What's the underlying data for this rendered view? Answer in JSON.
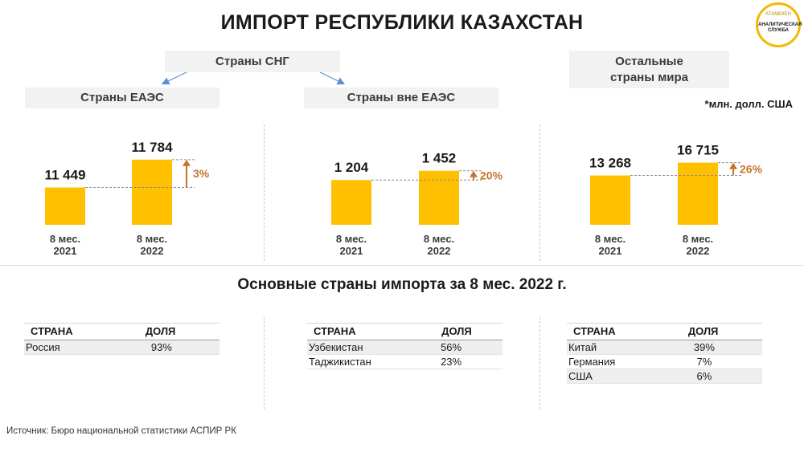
{
  "header": {
    "title": "ИМПОРТ РЕСПУБЛИКИ КАЗАХСТАН"
  },
  "logo": {
    "top_text": "АТАМЕКЕН",
    "bottom_text": "АНАЛИТИЧЕСКАЯ СЛУЖБА"
  },
  "groups": {
    "cis": "Страны СНГ",
    "eaeu": "Страны ЕАЭС",
    "non_eaeu": "Страны вне ЕАЭС",
    "other_line1": "Остальные",
    "other_line2": "страны мира"
  },
  "unit_note": "*млн. долл. США",
  "colors": {
    "bar": "#ffc000",
    "arrow": "#c5762a",
    "pct": "#c5762a"
  },
  "chart_data": [
    {
      "type": "bar",
      "title": "Страны ЕАЭС",
      "categories": [
        [
          "8 мес.",
          "2021"
        ],
        [
          "8 мес.",
          "2022"
        ]
      ],
      "values": [
        11449,
        11784
      ],
      "value_labels": [
        "11 449",
        "11 784"
      ],
      "change": "3%",
      "ylim": [
        11000,
        11850
      ]
    },
    {
      "type": "bar",
      "title": "Страны вне ЕАЭС",
      "categories": [
        [
          "8 мес.",
          "2021"
        ],
        [
          "8 мес.",
          "2022"
        ]
      ],
      "values": [
        1204,
        1452
      ],
      "value_labels": [
        "1 204",
        "1 452"
      ],
      "change": "20%",
      "ylim": [
        0,
        1900
      ]
    },
    {
      "type": "bar",
      "title": "Остальные страны мира",
      "categories": [
        [
          "8 мес.",
          "2021"
        ],
        [
          "8 мес.",
          "2022"
        ]
      ],
      "values": [
        13268,
        16715
      ],
      "value_labels": [
        "13 268",
        "16 715"
      ],
      "change": "26%",
      "ylim": [
        0,
        19000
      ]
    }
  ],
  "main_countries": {
    "title": "Основные страны импорта за 8 мес. 2022 г.",
    "header": {
      "country": "СТРАНА",
      "share": "ДОЛЯ"
    },
    "tables": [
      {
        "rows": [
          {
            "country": "Россия",
            "share": "93%"
          }
        ]
      },
      {
        "rows": [
          {
            "country": "Узбекистан",
            "share": "56%"
          },
          {
            "country": "Таджикистан",
            "share": "23%"
          }
        ]
      },
      {
        "rows": [
          {
            "country": "Китай",
            "share": "39%"
          },
          {
            "country": "Германия",
            "share": "7%"
          },
          {
            "country": "США",
            "share": "6%"
          }
        ]
      }
    ]
  },
  "footer": {
    "source": "Источник: Бюро национальной  статистики  АСПИР РК"
  }
}
